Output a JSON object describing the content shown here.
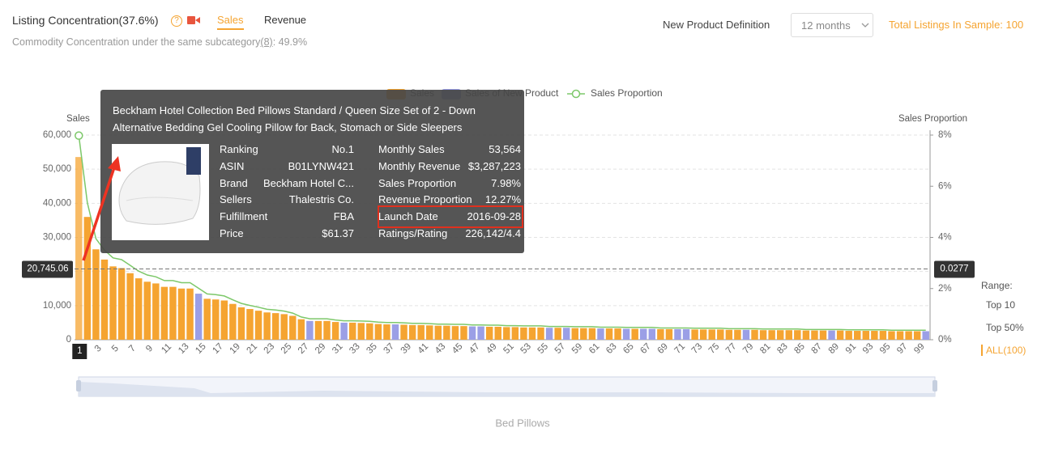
{
  "header": {
    "title": "Listing Concentration(37.6%)",
    "tabs": [
      "Sales",
      "Revenue"
    ],
    "subtitle": "Commodity Concentration under the same subcategory",
    "subtitle_link": "(8)",
    "subtitle_value": ":  49.9%",
    "definition_label": "New Product Definition",
    "definition_value": "12 months",
    "total": "Total Listings In Sample: 100"
  },
  "chart_data": {
    "type": "bar",
    "ylabel": "Sales",
    "y2label": "Sales Proportion",
    "footer": "Bed Pillows",
    "categories": [
      1,
      null,
      3,
      null,
      5,
      null,
      7,
      null,
      9,
      null,
      11,
      null,
      13,
      null,
      15,
      null,
      17,
      null,
      19,
      null,
      21,
      null,
      23,
      null,
      25,
      null,
      27,
      null,
      29,
      null,
      31,
      null,
      33,
      null,
      35,
      null,
      37,
      null,
      39,
      null,
      41,
      null,
      43,
      null,
      45,
      null,
      47,
      null,
      49,
      null,
      51,
      null,
      53,
      null,
      55,
      null,
      57,
      null,
      59,
      null,
      61,
      null,
      63,
      null,
      65,
      null,
      67,
      null,
      69,
      null,
      71,
      null,
      73,
      null,
      75,
      null,
      77,
      null,
      79,
      null,
      81,
      null,
      83,
      null,
      85,
      null,
      87,
      null,
      89,
      null,
      91,
      null,
      93,
      null,
      95,
      null,
      97,
      null,
      99,
      null
    ],
    "series": [
      {
        "name": "Sales",
        "color": "#f5a431",
        "values": [
          53564,
          36000,
          26500,
          23500,
          21500,
          21000,
          19500,
          18000,
          17000,
          16500,
          15500,
          15500,
          15000,
          15000,
          null,
          12000,
          11800,
          11500,
          10500,
          9500,
          9000,
          8500,
          8000,
          7800,
          7500,
          7000,
          6000,
          null,
          5500,
          5500,
          5200,
          null,
          5000,
          4900,
          4800,
          4600,
          4500,
          null,
          4400,
          4300,
          4300,
          4200,
          4100,
          4100,
          4000,
          4000,
          null,
          null,
          3800,
          3800,
          3700,
          3700,
          3600,
          3600,
          3600,
          null,
          3500,
          null,
          3400,
          3400,
          3400,
          null,
          3300,
          3300,
          null,
          3200,
          null,
          null,
          3100,
          3100,
          null,
          null,
          3000,
          3000,
          3000,
          3000,
          2900,
          2900,
          null,
          2900,
          2800,
          2800,
          2800,
          2800,
          2800,
          2700,
          2700,
          2700,
          null,
          2700,
          2600,
          2600,
          2600,
          2600,
          2600,
          2500,
          2500,
          2500,
          2500,
          null
        ]
      },
      {
        "name": "Sales of New Product",
        "color": "#9b9fe6",
        "values": [
          null,
          null,
          null,
          null,
          null,
          null,
          null,
          null,
          null,
          null,
          null,
          null,
          null,
          null,
          13500,
          null,
          null,
          null,
          null,
          null,
          null,
          null,
          null,
          null,
          null,
          null,
          null,
          5500,
          null,
          null,
          null,
          5000,
          null,
          null,
          null,
          null,
          null,
          4500,
          null,
          null,
          null,
          null,
          null,
          null,
          null,
          null,
          3900,
          3900,
          null,
          null,
          null,
          null,
          null,
          null,
          null,
          3500,
          null,
          3500,
          null,
          null,
          null,
          3300,
          null,
          null,
          3200,
          null,
          3200,
          3200,
          null,
          null,
          3100,
          3100,
          null,
          null,
          null,
          null,
          null,
          null,
          2900,
          null,
          null,
          null,
          null,
          null,
          null,
          null,
          null,
          null,
          2700,
          null,
          null,
          null,
          null,
          null,
          null,
          null,
          null,
          null,
          null,
          2500
        ]
      },
      {
        "name": "Sales Proportion",
        "color": "#7dc86a",
        "axis": "y2",
        "values": [
          7.98,
          5.36,
          3.95,
          3.5,
          3.2,
          3.13,
          2.91,
          2.68,
          2.53,
          2.46,
          2.31,
          2.31,
          2.23,
          2.23,
          2.01,
          1.79,
          1.76,
          1.71,
          1.56,
          1.42,
          1.34,
          1.27,
          1.19,
          1.16,
          1.12,
          1.04,
          0.89,
          0.82,
          0.82,
          0.82,
          0.77,
          0.74,
          0.74,
          0.73,
          0.72,
          0.69,
          0.67,
          0.67,
          0.66,
          0.64,
          0.64,
          0.63,
          0.61,
          0.61,
          0.6,
          0.6,
          0.58,
          0.58,
          0.57,
          0.57,
          0.55,
          0.55,
          0.54,
          0.54,
          0.54,
          0.52,
          0.52,
          0.52,
          0.51,
          0.51,
          0.51,
          0.49,
          0.49,
          0.49,
          0.48,
          0.48,
          0.48,
          0.48,
          0.46,
          0.46,
          0.46,
          0.46,
          0.45,
          0.45,
          0.45,
          0.45,
          0.43,
          0.43,
          0.43,
          0.43,
          0.42,
          0.42,
          0.42,
          0.42,
          0.42,
          0.4,
          0.4,
          0.4,
          0.4,
          0.4,
          0.39,
          0.39,
          0.39,
          0.39,
          0.39,
          0.37,
          0.37,
          0.37,
          0.37,
          0.37
        ]
      }
    ],
    "ylim": [
      0,
      60000
    ],
    "yticks": [
      0,
      {
        "value": 10000,
        "label": "10,000"
      },
      {
        "value": 20000,
        "label": "20,000"
      },
      {
        "value": 30000,
        "label": "30,000"
      },
      {
        "value": 40000,
        "label": "40,000"
      },
      {
        "value": 50000,
        "label": "50,000"
      },
      {
        "value": 60000,
        "label": "60,000"
      }
    ],
    "y2lim": [
      0,
      8
    ],
    "y2ticks": [
      {
        "value": 0,
        "label": "0%"
      },
      {
        "value": 2,
        "label": "2%"
      },
      {
        "value": 4,
        "label": "4%"
      },
      {
        "value": 6,
        "label": "6%"
      },
      {
        "value": 8,
        "label": "8%"
      }
    ],
    "grid": true,
    "crosshair": {
      "value": 20745.06,
      "label": "20,745.06",
      "y2_label": "0.0277"
    },
    "range": {
      "label": "Range:",
      "options": [
        "Top 10",
        "Top 50%",
        "ALL(100)"
      ]
    }
  },
  "tooltip": {
    "title": "Beckham Hotel Collection Bed Pillows Standard / Queen Size Set of 2 - Down Alternative Bedding Gel Cooling Pillow for Back, Stomach or Side Sleepers",
    "left": [
      [
        "Ranking",
        "No.1"
      ],
      [
        "ASIN",
        "B01LYNW421"
      ],
      [
        "Brand",
        "Beckham Hotel C..."
      ],
      [
        "Sellers",
        "Thalestris Co."
      ],
      [
        "Fulfillment",
        "FBA"
      ],
      [
        "Price",
        "$61.37"
      ]
    ],
    "right": [
      [
        "Monthly Sales",
        "53,564"
      ],
      [
        "Monthly Revenue",
        "$3,287,223"
      ],
      [
        "Sales Proportion",
        "7.98%"
      ],
      [
        "Revenue Proportion",
        "12.27%"
      ],
      [
        "Launch Date",
        "2016-09-28"
      ],
      [
        "Ratings/Rating",
        "226,142/4.4"
      ]
    ]
  }
}
